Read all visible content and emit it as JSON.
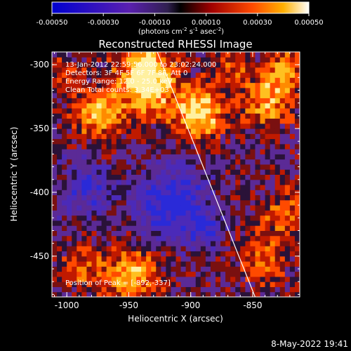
{
  "colorbar": {
    "min": -0.0005,
    "max": 0.0005,
    "ticks": [
      "-0.00050",
      "-0.00030",
      "-0.00010",
      "0.00010",
      "0.00030",
      "0.00050"
    ],
    "tick_values": [
      -0.0005,
      -0.0003,
      -0.0001,
      0.0001,
      0.0003,
      0.0005
    ],
    "units_text": "(photons cm",
    "units_exp1": "-2",
    "units_mid1": " s",
    "units_exp2": "-1",
    "units_mid2": " asec",
    "units_exp3": "-2",
    "units_end": ")"
  },
  "annotation": {
    "time_range": "13-Jan-2012 22:59:56.000 to 23:02:24.000",
    "detectors": "Detectors: 3F 4F 5F 6F 7F 8F, Att 0",
    "energy": "Energy Range: 12.0 - 25.0 keV",
    "clean": "Clean     Total counts: 3.34E+03",
    "peak": "Position of Peak = [-892,-337]"
  },
  "footer": {
    "timestamp": "8-May-2022 19:41"
  },
  "chart_data": {
    "type": "heatmap",
    "title": "Reconstructed RHESSI Image",
    "xlabel": "Heliocentric X (arcsec)",
    "ylabel": "Heliocentric Y (arcsec)",
    "xlim": [
      -1012,
      -812
    ],
    "ylim": [
      -482,
      -290
    ],
    "x_ticks": [
      -1000,
      -950,
      -900,
      -850
    ],
    "x_tick_labels": [
      "-1000",
      "-950",
      "-900",
      "-850"
    ],
    "y_ticks": [
      -300,
      -350,
      -400,
      -450
    ],
    "y_tick_labels": [
      "-300",
      "-350",
      "-400",
      "-450"
    ],
    "peak_position": [
      -892,
      -337
    ],
    "limb_line": [
      [
        -927,
        -290
      ],
      [
        -848,
        -482
      ]
    ],
    "colors": {
      "background": "#000000",
      "text": "#ffffff"
    }
  }
}
